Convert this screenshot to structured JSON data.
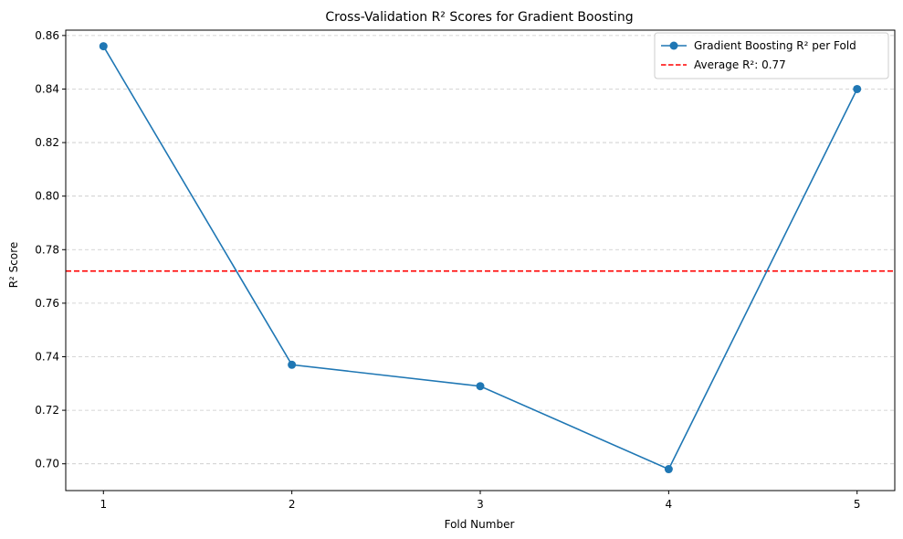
{
  "chart_data": {
    "type": "line",
    "title": "Cross-Validation R² Scores for Gradient Boosting",
    "xlabel": "Fold Number",
    "ylabel": "R² Score",
    "x": [
      1,
      2,
      3,
      4,
      5
    ],
    "xlim": [
      0.8,
      5.2
    ],
    "ylim": [
      0.69,
      0.862
    ],
    "yticks": [
      "0.70",
      "0.72",
      "0.74",
      "0.76",
      "0.78",
      "0.80",
      "0.82",
      "0.84",
      "0.86"
    ],
    "xticks": [
      "1",
      "2",
      "3",
      "4",
      "5"
    ],
    "grid": "y-dashed",
    "legend_position": "top-right",
    "series": [
      {
        "name": "Gradient Boosting R² per Fold",
        "color": "#1f77b4",
        "marker": "circle",
        "values": [
          0.856,
          0.737,
          0.729,
          0.698,
          0.84
        ]
      }
    ],
    "reference_line": {
      "name": "Average R²: 0.77",
      "y": 0.772,
      "color": "#ff0000",
      "style": "dashed"
    }
  }
}
